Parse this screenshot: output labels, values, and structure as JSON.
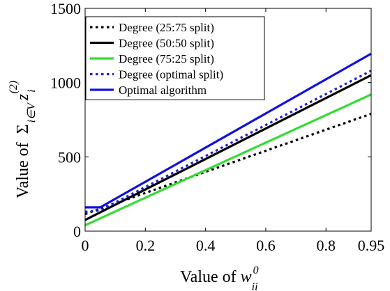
{
  "chart_data": {
    "type": "line",
    "title": "",
    "xlabel": "Value of w_ii^0",
    "xlabel_parts": {
      "prefix": "Value of ",
      "var": "w",
      "sub": "ii",
      "sup": "0"
    },
    "ylabel": "Value of Σ_{i∈V} z_i^(2)",
    "ylabel_parts": {
      "prefix": "Value of ",
      "sum": "Σ",
      "sum_sub": "i∈V",
      "var": "z",
      "sub": "i",
      "sup": "(2)"
    },
    "xlim": [
      0,
      0.95
    ],
    "ylim": [
      0,
      1500
    ],
    "xticks": [
      0,
      0.2,
      0.4,
      0.6,
      0.8,
      0.95
    ],
    "xtick_labels": [
      "0",
      "0.2",
      "0.4",
      "0.6",
      "0.8",
      "0.95"
    ],
    "yticks": [
      0,
      500,
      1000,
      1500
    ],
    "ytick_labels": [
      "0",
      "500",
      "1000",
      "1500"
    ],
    "grid": false,
    "legend_position": "top-left",
    "series": [
      {
        "name": "Degree (25:75 split)",
        "color": "#000000",
        "style": "dotted",
        "x": [
          0,
          0.95
        ],
        "y": [
          115,
          790
        ]
      },
      {
        "name": "Degree (50:50 split)",
        "color": "#000000",
        "style": "solid",
        "x": [
          0,
          0.95
        ],
        "y": [
          75,
          1050
        ]
      },
      {
        "name": "Degree (75:25 split)",
        "color": "#33dd33",
        "style": "solid",
        "x": [
          0,
          0.95
        ],
        "y": [
          40,
          920
        ]
      },
      {
        "name": "Degree (optimal split)",
        "color": "#2222cc",
        "style": "dotted",
        "x": [
          0,
          0.05,
          0.95
        ],
        "y": [
          130,
          140,
          1080
        ]
      },
      {
        "name": "Optimal algorithm",
        "color": "#1111dd",
        "style": "solid",
        "x": [
          0,
          0.05,
          0.95
        ],
        "y": [
          160,
          160,
          1195
        ]
      }
    ]
  }
}
